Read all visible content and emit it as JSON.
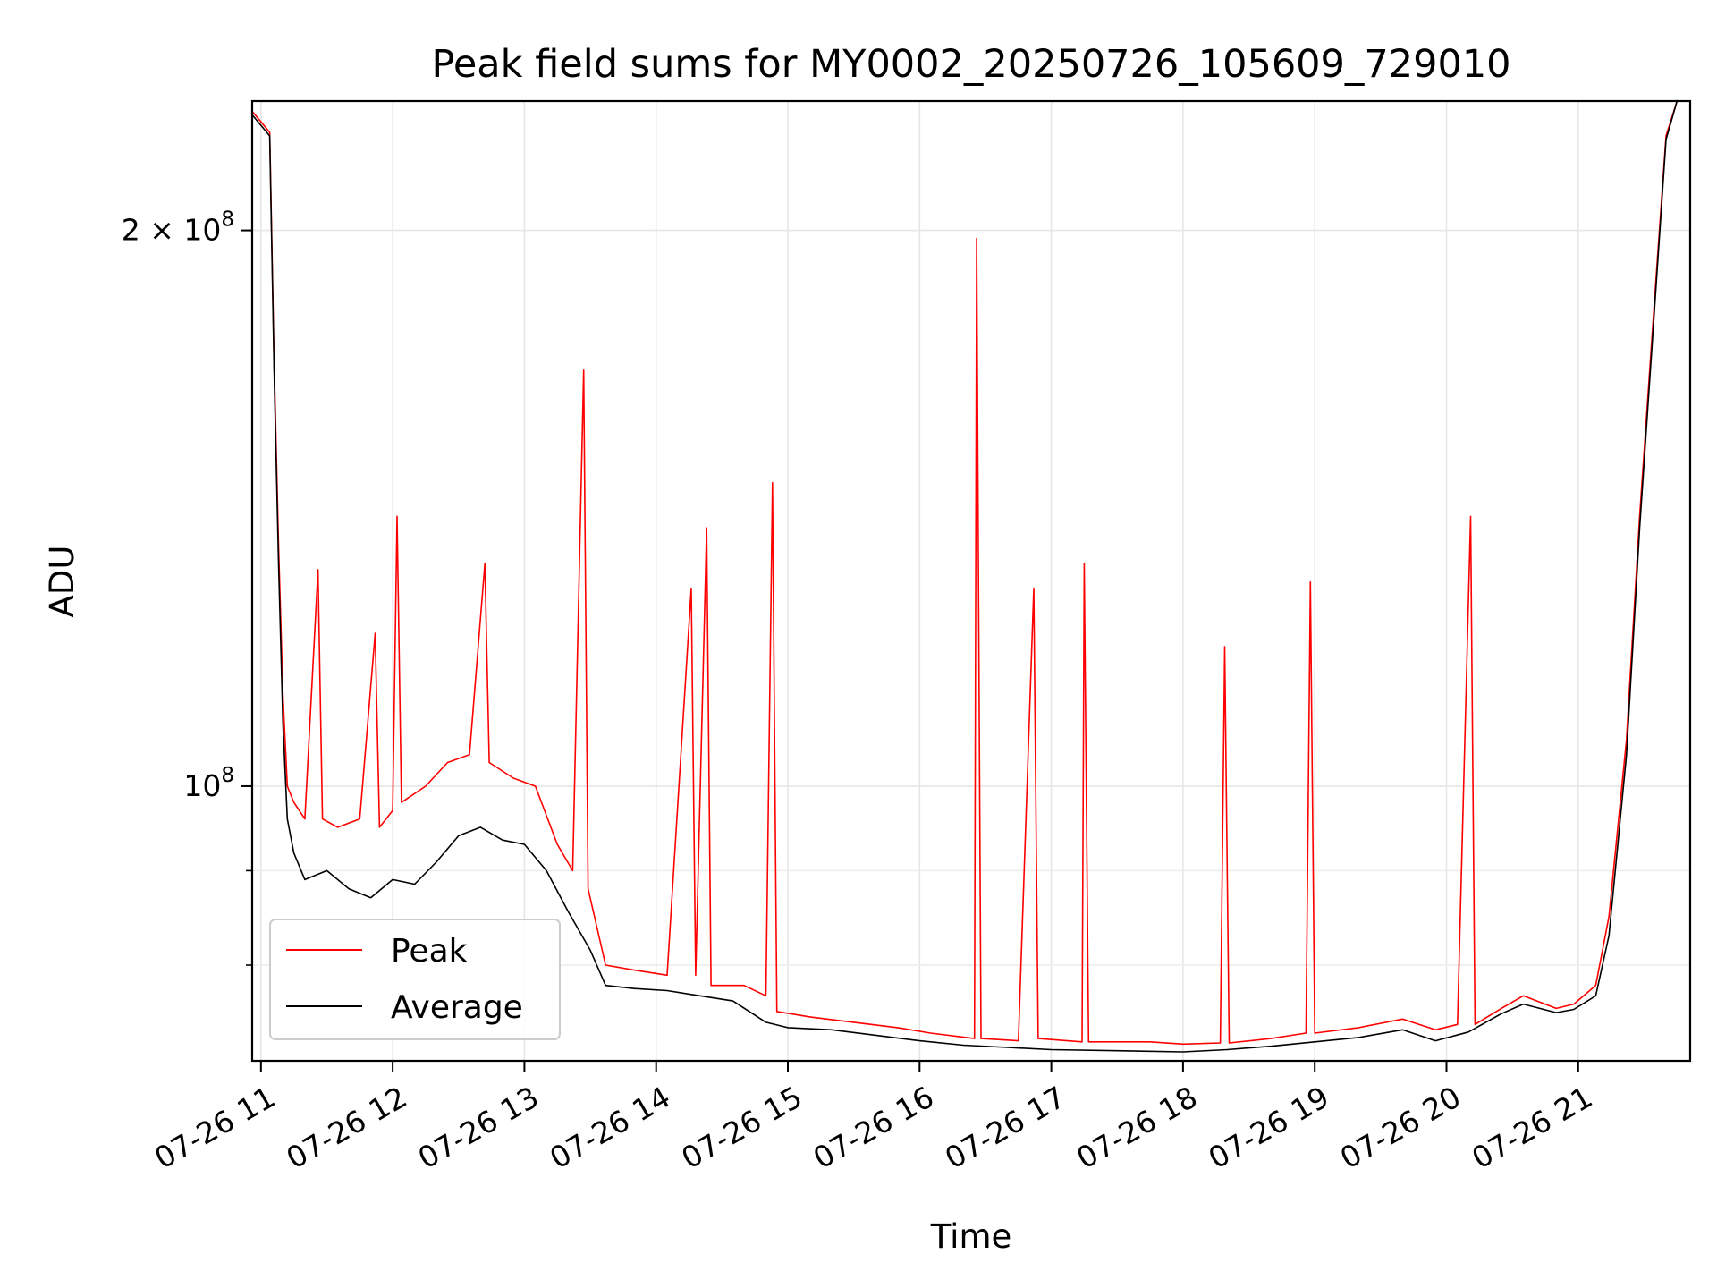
{
  "chart_data": {
    "type": "line",
    "title": "Peak field sums for MY0002_20250726_105609_729010",
    "xlabel": "Time",
    "ylabel": "ADU",
    "xlim": [
      "2025-07-26 10:56",
      "2025-07-26 21:51"
    ],
    "ylim": [
      71000000,
      235000000
    ],
    "yscale": "log",
    "grid": true,
    "legend_position": "lower-left",
    "x_ticks": [
      {
        "time": "2025-07-26 11:00",
        "label": "07-26 11"
      },
      {
        "time": "2025-07-26 12:00",
        "label": "07-26 12"
      },
      {
        "time": "2025-07-26 13:00",
        "label": "07-26 13"
      },
      {
        "time": "2025-07-26 14:00",
        "label": "07-26 14"
      },
      {
        "time": "2025-07-26 15:00",
        "label": "07-26 15"
      },
      {
        "time": "2025-07-26 16:00",
        "label": "07-26 16"
      },
      {
        "time": "2025-07-26 17:00",
        "label": "07-26 17"
      },
      {
        "time": "2025-07-26 18:00",
        "label": "07-26 18"
      },
      {
        "time": "2025-07-26 19:00",
        "label": "07-26 19"
      },
      {
        "time": "2025-07-26 20:00",
        "label": "07-26 20"
      },
      {
        "time": "2025-07-26 21:00",
        "label": "07-26 21"
      }
    ],
    "y_major_ticks": [
      {
        "value": 100000000,
        "base": "10",
        "exp": "8",
        "prefix": ""
      },
      {
        "value": 200000000,
        "base": "10",
        "exp": "8",
        "prefix": "2 × "
      }
    ],
    "y_minor_ticks": [
      80000000,
      90000000
    ],
    "series": [
      {
        "name": "Peak",
        "color": "#ff0000",
        "points": [
          [
            "2025-07-26 10:56",
            232000000
          ],
          [
            "2025-07-26 11:00",
            229000000
          ],
          [
            "2025-07-26 11:04",
            226000000
          ],
          [
            "2025-07-26 11:06",
            170000000
          ],
          [
            "2025-07-26 11:08",
            135000000
          ],
          [
            "2025-07-26 11:10",
            112000000
          ],
          [
            "2025-07-26 11:12",
            100000000
          ],
          [
            "2025-07-26 11:15",
            98000000
          ],
          [
            "2025-07-26 11:20",
            96000000
          ],
          [
            "2025-07-26 11:26",
            131000000
          ],
          [
            "2025-07-26 11:28",
            96000000
          ],
          [
            "2025-07-26 11:35",
            95000000
          ],
          [
            "2025-07-26 11:45",
            96000000
          ],
          [
            "2025-07-26 11:52",
            121000000
          ],
          [
            "2025-07-26 11:54",
            95000000
          ],
          [
            "2025-07-26 12:00",
            97000000
          ],
          [
            "2025-07-26 12:02",
            140000000
          ],
          [
            "2025-07-26 12:04",
            98000000
          ],
          [
            "2025-07-26 12:15",
            100000000
          ],
          [
            "2025-07-26 12:25",
            103000000
          ],
          [
            "2025-07-26 12:35",
            104000000
          ],
          [
            "2025-07-26 12:42",
            132000000
          ],
          [
            "2025-07-26 12:44",
            103000000
          ],
          [
            "2025-07-26 12:55",
            101000000
          ],
          [
            "2025-07-26 13:05",
            100000000
          ],
          [
            "2025-07-26 13:15",
            93000000
          ],
          [
            "2025-07-26 13:22",
            90000000
          ],
          [
            "2025-07-26 13:27",
            168000000
          ],
          [
            "2025-07-26 13:29",
            88000000
          ],
          [
            "2025-07-26 13:37",
            80000000
          ],
          [
            "2025-07-26 13:50",
            79500000
          ],
          [
            "2025-07-26 14:05",
            79000000
          ],
          [
            "2025-07-26 14:16",
            128000000
          ],
          [
            "2025-07-26 14:18",
            79000000
          ],
          [
            "2025-07-26 14:23",
            138000000
          ],
          [
            "2025-07-26 14:25",
            78000000
          ],
          [
            "2025-07-26 14:40",
            78000000
          ],
          [
            "2025-07-26 14:50",
            77000000
          ],
          [
            "2025-07-26 14:53",
            146000000
          ],
          [
            "2025-07-26 14:55",
            75500000
          ],
          [
            "2025-07-26 15:10",
            75000000
          ],
          [
            "2025-07-26 15:30",
            74500000
          ],
          [
            "2025-07-26 15:50",
            74000000
          ],
          [
            "2025-07-26 16:05",
            73500000
          ],
          [
            "2025-07-26 16:25",
            73000000
          ],
          [
            "2025-07-26 16:26",
            198000000
          ],
          [
            "2025-07-26 16:28",
            73000000
          ],
          [
            "2025-07-26 16:45",
            72800000
          ],
          [
            "2025-07-26 16:52",
            128000000
          ],
          [
            "2025-07-26 16:54",
            73000000
          ],
          [
            "2025-07-26 17:14",
            72700000
          ],
          [
            "2025-07-26 17:15",
            132000000
          ],
          [
            "2025-07-26 17:17",
            72700000
          ],
          [
            "2025-07-26 17:45",
            72700000
          ],
          [
            "2025-07-26 18:00",
            72500000
          ],
          [
            "2025-07-26 18:17",
            72600000
          ],
          [
            "2025-07-26 18:19",
            119000000
          ],
          [
            "2025-07-26 18:21",
            72600000
          ],
          [
            "2025-07-26 18:40",
            73000000
          ],
          [
            "2025-07-26 18:56",
            73500000
          ],
          [
            "2025-07-26 18:58",
            129000000
          ],
          [
            "2025-07-26 19:00",
            73500000
          ],
          [
            "2025-07-26 19:20",
            74000000
          ],
          [
            "2025-07-26 19:40",
            74800000
          ],
          [
            "2025-07-26 19:55",
            73800000
          ],
          [
            "2025-07-26 20:05",
            74300000
          ],
          [
            "2025-07-26 20:11",
            140000000
          ],
          [
            "2025-07-26 20:13",
            74300000
          ],
          [
            "2025-07-26 20:25",
            75800000
          ],
          [
            "2025-07-26 20:35",
            77000000
          ],
          [
            "2025-07-26 20:50",
            75800000
          ],
          [
            "2025-07-26 20:58",
            76200000
          ],
          [
            "2025-07-26 21:08",
            78000000
          ],
          [
            "2025-07-26 21:14",
            85000000
          ],
          [
            "2025-07-26 21:22",
            106000000
          ],
          [
            "2025-07-26 21:28",
            140000000
          ],
          [
            "2025-07-26 21:35",
            185000000
          ],
          [
            "2025-07-26 21:40",
            225000000
          ],
          [
            "2025-07-26 21:45",
            235000000
          ]
        ]
      },
      {
        "name": "Average",
        "color": "#000000",
        "points": [
          [
            "2025-07-26 10:56",
            231000000
          ],
          [
            "2025-07-26 11:00",
            228000000
          ],
          [
            "2025-07-26 11:04",
            225000000
          ],
          [
            "2025-07-26 11:06",
            168000000
          ],
          [
            "2025-07-26 11:08",
            132000000
          ],
          [
            "2025-07-26 11:10",
            108000000
          ],
          [
            "2025-07-26 11:12",
            96000000
          ],
          [
            "2025-07-26 11:15",
            92000000
          ],
          [
            "2025-07-26 11:20",
            89000000
          ],
          [
            "2025-07-26 11:30",
            90000000
          ],
          [
            "2025-07-26 11:40",
            88000000
          ],
          [
            "2025-07-26 11:50",
            87000000
          ],
          [
            "2025-07-26 12:00",
            89000000
          ],
          [
            "2025-07-26 12:10",
            88500000
          ],
          [
            "2025-07-26 12:20",
            91000000
          ],
          [
            "2025-07-26 12:30",
            94000000
          ],
          [
            "2025-07-26 12:40",
            95000000
          ],
          [
            "2025-07-26 12:50",
            93500000
          ],
          [
            "2025-07-26 13:00",
            93000000
          ],
          [
            "2025-07-26 13:10",
            90000000
          ],
          [
            "2025-07-26 13:20",
            85500000
          ],
          [
            "2025-07-26 13:30",
            81500000
          ],
          [
            "2025-07-26 13:37",
            78000000
          ],
          [
            "2025-07-26 13:50",
            77700000
          ],
          [
            "2025-07-26 14:05",
            77500000
          ],
          [
            "2025-07-26 14:20",
            77000000
          ],
          [
            "2025-07-26 14:35",
            76500000
          ],
          [
            "2025-07-26 14:50",
            74500000
          ],
          [
            "2025-07-26 15:00",
            74000000
          ],
          [
            "2025-07-26 15:20",
            73800000
          ],
          [
            "2025-07-26 15:40",
            73300000
          ],
          [
            "2025-07-26 16:00",
            72800000
          ],
          [
            "2025-07-26 16:20",
            72400000
          ],
          [
            "2025-07-26 16:40",
            72200000
          ],
          [
            "2025-07-26 17:00",
            72000000
          ],
          [
            "2025-07-26 17:30",
            71900000
          ],
          [
            "2025-07-26 18:00",
            71800000
          ],
          [
            "2025-07-26 18:20",
            72000000
          ],
          [
            "2025-07-26 18:40",
            72300000
          ],
          [
            "2025-07-26 19:00",
            72700000
          ],
          [
            "2025-07-26 19:20",
            73100000
          ],
          [
            "2025-07-26 19:40",
            73800000
          ],
          [
            "2025-07-26 19:55",
            72800000
          ],
          [
            "2025-07-26 20:10",
            73600000
          ],
          [
            "2025-07-26 20:25",
            75300000
          ],
          [
            "2025-07-26 20:35",
            76200000
          ],
          [
            "2025-07-26 20:50",
            75400000
          ],
          [
            "2025-07-26 20:58",
            75700000
          ],
          [
            "2025-07-26 21:08",
            77000000
          ],
          [
            "2025-07-26 21:14",
            83000000
          ],
          [
            "2025-07-26 21:22",
            104000000
          ],
          [
            "2025-07-26 21:28",
            138000000
          ],
          [
            "2025-07-26 21:35",
            183000000
          ],
          [
            "2025-07-26 21:40",
            224000000
          ],
          [
            "2025-07-26 21:45",
            235000000
          ]
        ]
      }
    ]
  }
}
